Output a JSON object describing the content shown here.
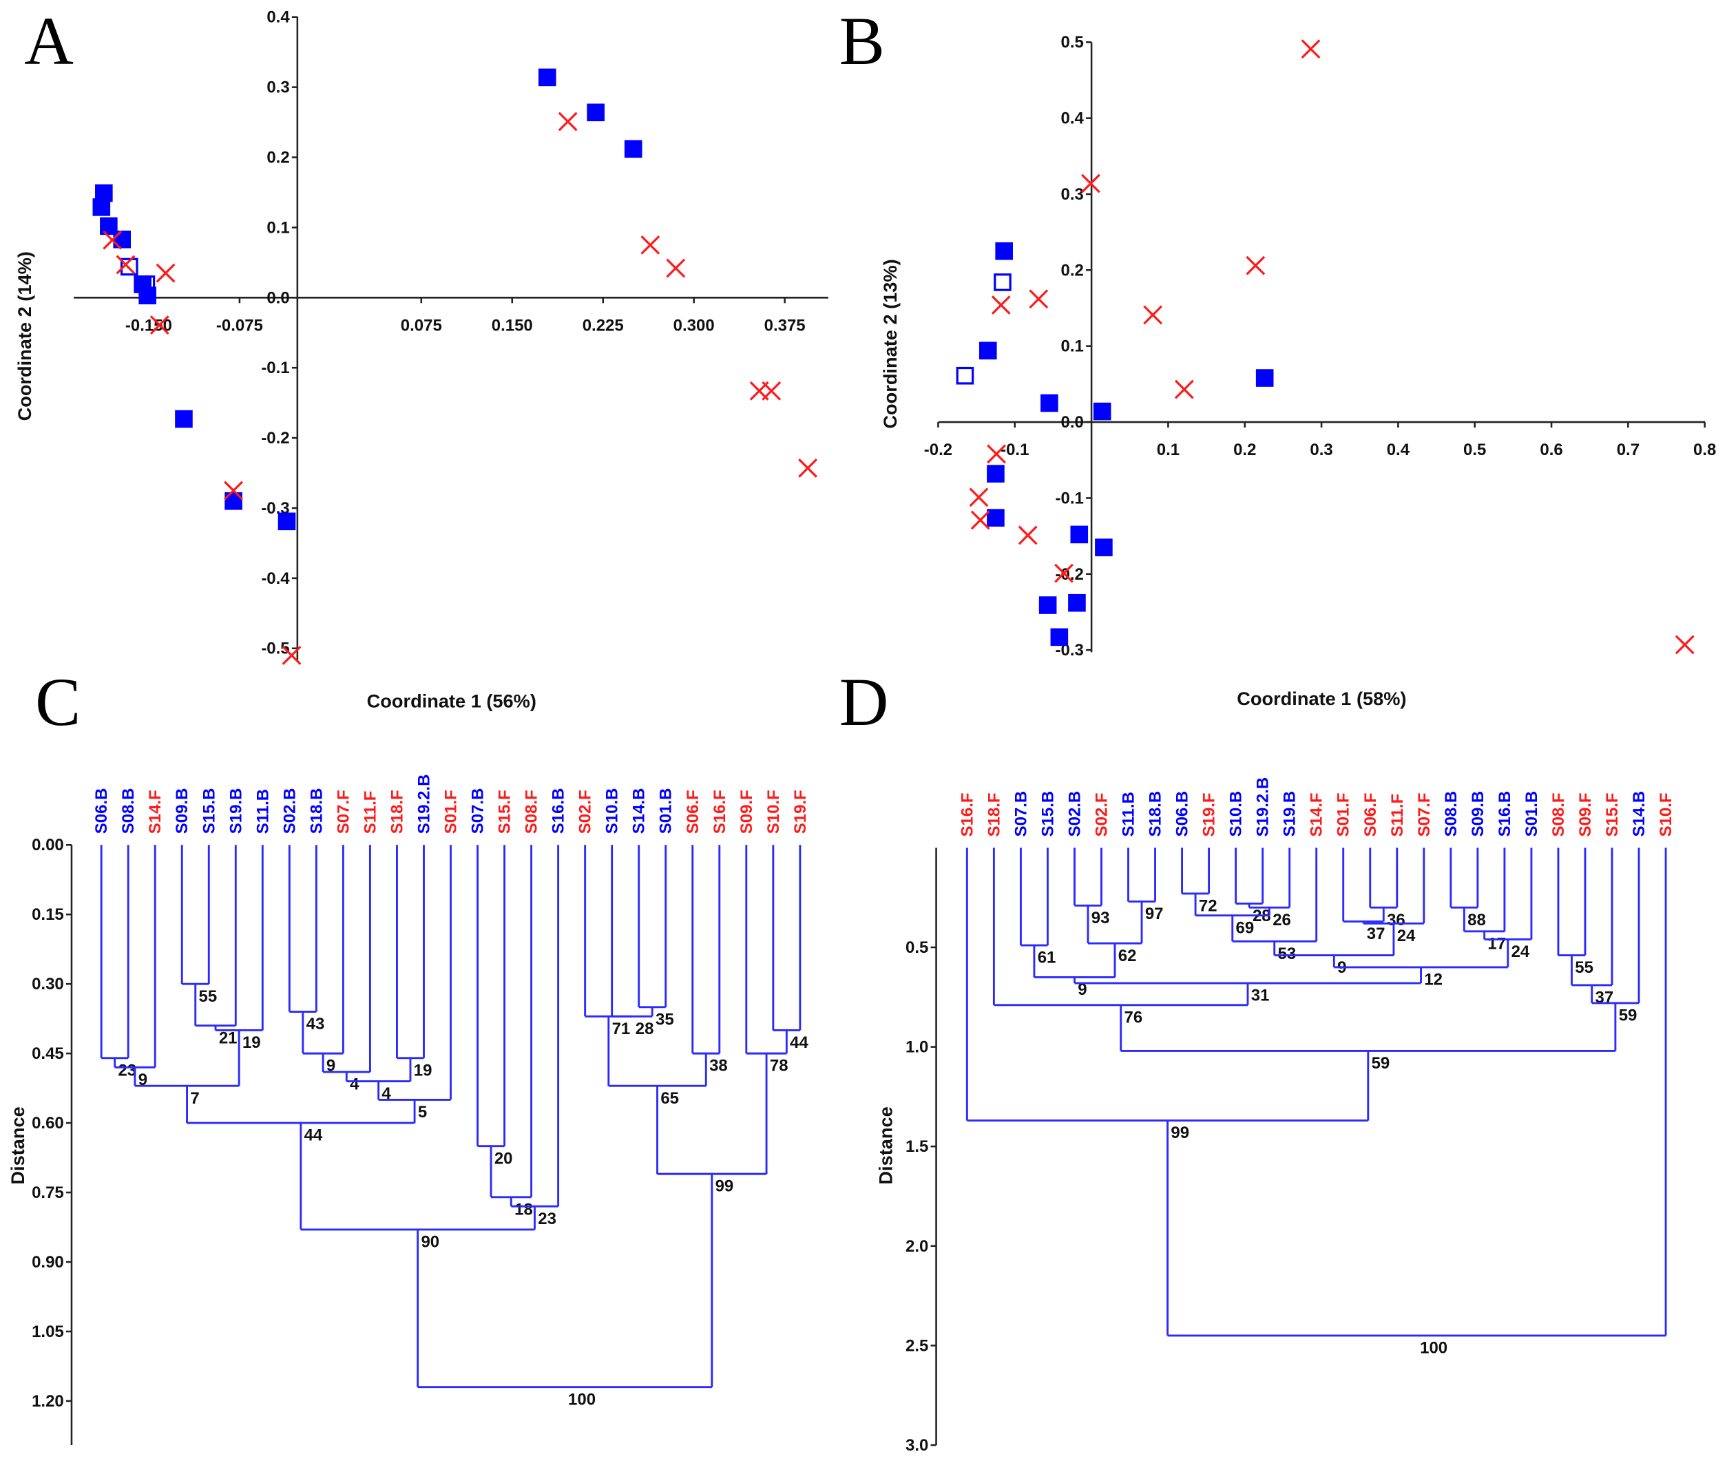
{
  "colors": {
    "group_B": "#0000ff",
    "group_F": "#ff1a1a",
    "tree": "#2a2aff",
    "axis": "#222222"
  },
  "chart_data": [
    {
      "panel": "A",
      "type": "scatter",
      "xlabel": "Coordinate 1 (56%)",
      "ylabel": "Coordinate 2 (14%)",
      "xticks": [
        "-0.150",
        "-0.075",
        "0.075",
        "0.150",
        "0.225",
        "0.300",
        "0.375"
      ],
      "xtick_values": [
        -0.15,
        -0.075,
        0.075,
        0.15,
        0.225,
        0.3,
        0.375
      ],
      "yticks": [
        "0.4",
        "0.3",
        "0.2",
        "0.1",
        "0.0",
        "-0.1",
        "-0.2",
        "-0.3",
        "-0.4",
        "-0.5"
      ],
      "ytick_values": [
        0.4,
        0.3,
        0.2,
        0.1,
        0.0,
        -0.1,
        -0.2,
        -0.3,
        -0.4,
        -0.5
      ],
      "xlim": [
        -0.2,
        0.4
      ],
      "ylim": [
        -0.5,
        0.4
      ],
      "grid": false,
      "series": [
        {
          "marker": "filled-square",
          "color": "#0000ff",
          "points": [
            [
              -0.187,
              0.149
            ],
            [
              -0.189,
              0.129
            ],
            [
              -0.183,
              0.102
            ],
            [
              -0.172,
              0.083
            ],
            [
              -0.155,
              0.019
            ],
            [
              -0.151,
              0.003
            ],
            [
              -0.121,
              -0.173
            ],
            [
              -0.08,
              -0.29
            ],
            [
              -0.036,
              -0.319
            ],
            [
              0.179,
              0.314
            ],
            [
              0.219,
              0.264
            ],
            [
              0.25,
              0.212
            ]
          ]
        },
        {
          "marker": "open-square",
          "color": "#0000ff",
          "points": [
            [
              -0.166,
              0.044
            ],
            [
              -0.152,
              0.019
            ]
          ]
        },
        {
          "marker": "cross",
          "color": "#ff1a1a",
          "points": [
            [
              -0.18,
              0.082
            ],
            [
              -0.169,
              0.047
            ],
            [
              -0.136,
              0.035
            ],
            [
              -0.141,
              -0.039
            ],
            [
              -0.08,
              -0.275
            ],
            [
              0.196,
              0.251
            ],
            [
              0.264,
              0.075
            ],
            [
              0.285,
              0.042
            ],
            [
              0.354,
              -0.133
            ],
            [
              0.364,
              -0.133
            ],
            [
              0.394,
              -0.243
            ],
            [
              -0.032,
              -0.51
            ]
          ]
        }
      ]
    },
    {
      "panel": "B",
      "type": "scatter",
      "xlabel": "Coordinate 1 (58%)",
      "ylabel": "Coordinate 2 (13%)",
      "xticks": [
        "-0.2",
        "-0.1",
        "0.1",
        "0.2",
        "0.3",
        "0.4",
        "0.5",
        "0.6",
        "0.7",
        "0.8"
      ],
      "xtick_values": [
        -0.2,
        -0.1,
        0.1,
        0.2,
        0.3,
        0.4,
        0.5,
        0.6,
        0.7,
        0.8
      ],
      "yticks": [
        "0.5",
        "0.4",
        "0.3",
        "0.2",
        "0.1",
        "0.0",
        "-0.1",
        "-0.2",
        "-0.3"
      ],
      "ytick_values": [
        0.5,
        0.4,
        0.3,
        0.2,
        0.1,
        0.0,
        -0.1,
        -0.2,
        -0.3
      ],
      "xlim": [
        -0.2,
        0.8
      ],
      "ylim": [
        -0.3,
        0.5
      ],
      "grid": false,
      "series": [
        {
          "marker": "filled-square",
          "color": "#0000ff",
          "points": [
            [
              -0.114,
              0.225
            ],
            [
              -0.135,
              0.094
            ],
            [
              -0.055,
              0.025
            ],
            [
              0.014,
              0.014
            ],
            [
              0.226,
              0.058
            ],
            [
              -0.125,
              -0.068
            ],
            [
              -0.125,
              -0.126
            ],
            [
              -0.016,
              -0.148
            ],
            [
              0.016,
              -0.165
            ],
            [
              -0.057,
              -0.241
            ],
            [
              -0.019,
              -0.238
            ],
            [
              -0.042,
              -0.283
            ]
          ]
        },
        {
          "marker": "open-square",
          "color": "#0000ff",
          "points": [
            [
              -0.116,
              0.184
            ],
            [
              -0.165,
              0.061
            ]
          ]
        },
        {
          "marker": "cross",
          "color": "#ff1a1a",
          "points": [
            [
              0.286,
              0.491
            ],
            [
              -0.001,
              0.314
            ],
            [
              0.214,
              0.206
            ],
            [
              -0.069,
              0.162
            ],
            [
              -0.118,
              0.154
            ],
            [
              0.08,
              0.141
            ],
            [
              0.121,
              0.043
            ],
            [
              -0.124,
              -0.042
            ],
            [
              -0.147,
              -0.099
            ],
            [
              -0.145,
              -0.129
            ],
            [
              -0.083,
              -0.149
            ],
            [
              -0.036,
              -0.199
            ],
            [
              0.774,
              -0.293
            ]
          ]
        }
      ]
    },
    {
      "panel": "C",
      "type": "dendrogram",
      "ylabel": "Distance",
      "yticks": [
        "0.00",
        "0.15",
        "0.30",
        "0.45",
        "0.60",
        "0.75",
        "0.90",
        "1.05",
        "1.20"
      ],
      "ytick_values": [
        0,
        0.15,
        0.3,
        0.45,
        0.6,
        0.75,
        0.9,
        1.05,
        1.2
      ],
      "ylim": [
        0,
        1.3
      ],
      "leaves": [
        {
          "name": "S06.B",
          "group": "B"
        },
        {
          "name": "S08.B",
          "group": "B"
        },
        {
          "name": "S14.F",
          "group": "F"
        },
        {
          "name": "S09.B",
          "group": "B"
        },
        {
          "name": "S15.B",
          "group": "B"
        },
        {
          "name": "S19.B",
          "group": "B"
        },
        {
          "name": "S11.B",
          "group": "B"
        },
        {
          "name": "S02.B",
          "group": "B"
        },
        {
          "name": "S18.B",
          "group": "B"
        },
        {
          "name": "S07.F",
          "group": "F"
        },
        {
          "name": "S11.F",
          "group": "F"
        },
        {
          "name": "S18.F",
          "group": "F"
        },
        {
          "name": "S19.2.B",
          "group": "B"
        },
        {
          "name": "S01.F",
          "group": "F"
        },
        {
          "name": "S07.B",
          "group": "B"
        },
        {
          "name": "S15.F",
          "group": "F"
        },
        {
          "name": "S08.F",
          "group": "F"
        },
        {
          "name": "S16.B",
          "group": "B"
        },
        {
          "name": "S02.F",
          "group": "F"
        },
        {
          "name": "S10.B",
          "group": "B"
        },
        {
          "name": "S14.B",
          "group": "B"
        },
        {
          "name": "S01.B",
          "group": "B"
        },
        {
          "name": "S06.F",
          "group": "F"
        },
        {
          "name": "S16.F",
          "group": "F"
        },
        {
          "name": "S09.F",
          "group": "F"
        },
        {
          "name": "S10.F",
          "group": "F"
        },
        {
          "name": "S19.F",
          "group": "F"
        }
      ],
      "merges": [
        [
          3,
          4,
          0.3,
          "55"
        ],
        [
          27,
          5,
          0.39,
          "21"
        ],
        [
          28,
          6,
          0.4,
          "19"
        ],
        [
          0,
          1,
          0.46,
          "23"
        ],
        [
          30,
          2,
          0.48,
          "9"
        ],
        [
          31,
          29,
          0.52,
          "7"
        ],
        [
          7,
          8,
          0.36,
          "43"
        ],
        [
          33,
          9,
          0.45,
          "9"
        ],
        [
          34,
          10,
          0.49,
          "4"
        ],
        [
          11,
          12,
          0.46,
          "19"
        ],
        [
          35,
          36,
          0.51,
          "4"
        ],
        [
          37,
          13,
          0.55,
          "5"
        ],
        [
          32,
          38,
          0.6,
          "44"
        ],
        [
          14,
          15,
          0.65,
          "20"
        ],
        [
          40,
          16,
          0.76,
          "18"
        ],
        [
          41,
          17,
          0.78,
          "23"
        ],
        [
          39,
          42,
          0.83,
          "90"
        ],
        [
          20,
          21,
          0.35,
          "35"
        ],
        [
          19,
          44,
          0.37,
          "28"
        ],
        [
          18,
          45,
          0.37,
          "71"
        ],
        [
          22,
          23,
          0.45,
          "38"
        ],
        [
          46,
          47,
          0.52,
          "65"
        ],
        [
          25,
          26,
          0.4,
          "44"
        ],
        [
          24,
          49,
          0.45,
          "78"
        ],
        [
          48,
          50,
          0.71,
          "99"
        ],
        [
          43,
          51,
          1.17,
          "100"
        ]
      ]
    },
    {
      "panel": "D",
      "type": "dendrogram",
      "ylabel": "Distance",
      "yticks": [
        "0.5",
        "1.0",
        "1.5",
        "2.0",
        "2.5",
        "3.0"
      ],
      "ytick_values": [
        0.5,
        1.0,
        1.5,
        2.0,
        2.5,
        3.0
      ],
      "ylim": [
        0,
        3.0
      ],
      "leaves": [
        {
          "name": "S16.F",
          "group": "F"
        },
        {
          "name": "S18.F",
          "group": "F"
        },
        {
          "name": "S07.B",
          "group": "B"
        },
        {
          "name": "S15.B",
          "group": "B"
        },
        {
          "name": "S02.B",
          "group": "B"
        },
        {
          "name": "S02.F",
          "group": "F"
        },
        {
          "name": "S11.B",
          "group": "B"
        },
        {
          "name": "S18.B",
          "group": "B"
        },
        {
          "name": "S06.B",
          "group": "B"
        },
        {
          "name": "S19.F",
          "group": "F"
        },
        {
          "name": "S10.B",
          "group": "B"
        },
        {
          "name": "S19.2.B",
          "group": "B"
        },
        {
          "name": "S19.B",
          "group": "B"
        },
        {
          "name": "S14.F",
          "group": "F"
        },
        {
          "name": "S01.F",
          "group": "F"
        },
        {
          "name": "S06.F",
          "group": "F"
        },
        {
          "name": "S11.F",
          "group": "F"
        },
        {
          "name": "S07.F",
          "group": "F"
        },
        {
          "name": "S08.B",
          "group": "B"
        },
        {
          "name": "S09.B",
          "group": "B"
        },
        {
          "name": "S16.B",
          "group": "B"
        },
        {
          "name": "S01.B",
          "group": "B"
        },
        {
          "name": "S08.F",
          "group": "F"
        },
        {
          "name": "S09.F",
          "group": "F"
        },
        {
          "name": "S15.F",
          "group": "F"
        },
        {
          "name": "S14.B",
          "group": "B"
        },
        {
          "name": "S10.F",
          "group": "F"
        }
      ],
      "merges": [
        [
          4,
          5,
          0.29,
          "93"
        ],
        [
          6,
          7,
          0.27,
          "97"
        ],
        [
          27,
          28,
          0.48,
          "62"
        ],
        [
          2,
          3,
          0.49,
          "61"
        ],
        [
          30,
          29,
          0.65,
          "9"
        ],
        [
          8,
          9,
          0.23,
          "72"
        ],
        [
          10,
          11,
          0.28,
          "28"
        ],
        [
          33,
          12,
          0.3,
          "26"
        ],
        [
          32,
          34,
          0.34,
          "69"
        ],
        [
          35,
          13,
          0.47,
          "53"
        ],
        [
          15,
          16,
          0.3,
          "36"
        ],
        [
          14,
          37,
          0.37,
          "37"
        ],
        [
          38,
          17,
          0.38,
          "24"
        ],
        [
          36,
          39,
          0.54,
          "9"
        ],
        [
          18,
          19,
          0.3,
          "88"
        ],
        [
          41,
          20,
          0.42,
          "17"
        ],
        [
          42,
          21,
          0.46,
          "24"
        ],
        [
          40,
          43,
          0.6,
          "12"
        ],
        [
          31,
          44,
          0.68,
          "31"
        ],
        [
          1,
          45,
          0.79,
          "76"
        ],
        [
          22,
          23,
          0.54,
          "55"
        ],
        [
          47,
          24,
          0.69,
          "37"
        ],
        [
          48,
          25,
          0.78,
          "59"
        ],
        [
          46,
          49,
          1.02,
          "59"
        ],
        [
          0,
          50,
          1.37,
          "99"
        ],
        [
          51,
          26,
          2.45,
          "100"
        ]
      ]
    }
  ]
}
